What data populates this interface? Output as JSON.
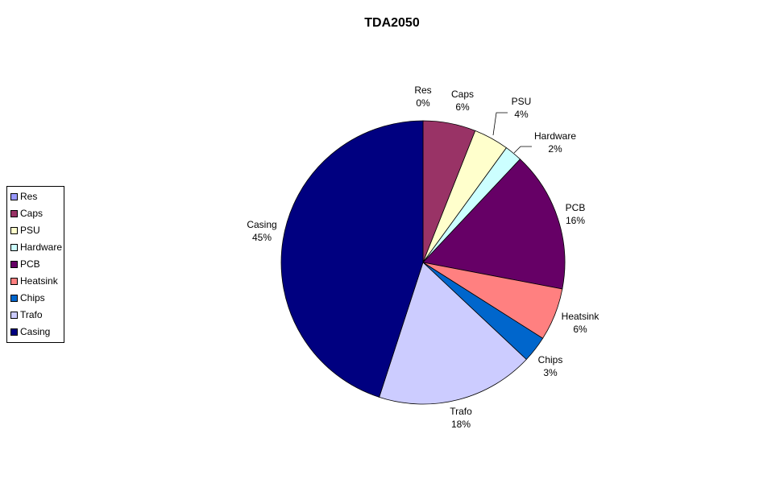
{
  "chart_data": {
    "type": "pie",
    "title": "TDA2050",
    "legend_position": "left",
    "slices": [
      {
        "label": "Res",
        "value": 0,
        "percent_label": "0%",
        "color": "#9999ff"
      },
      {
        "label": "Caps",
        "value": 6,
        "percent_label": "6%",
        "color": "#993366"
      },
      {
        "label": "PSU",
        "value": 4,
        "percent_label": "4%",
        "color": "#ffffcc"
      },
      {
        "label": "Hardware",
        "value": 2,
        "percent_label": "2%",
        "color": "#ccffff"
      },
      {
        "label": "PCB",
        "value": 16,
        "percent_label": "16%",
        "color": "#660066"
      },
      {
        "label": "Heatsink",
        "value": 6,
        "percent_label": "6%",
        "color": "#ff8080"
      },
      {
        "label": "Chips",
        "value": 3,
        "percent_label": "3%",
        "color": "#0066cc"
      },
      {
        "label": "Trafo",
        "value": 18,
        "percent_label": "18%",
        "color": "#ccccff"
      },
      {
        "label": "Casing",
        "value": 45,
        "percent_label": "45%",
        "color": "#000080"
      }
    ]
  }
}
